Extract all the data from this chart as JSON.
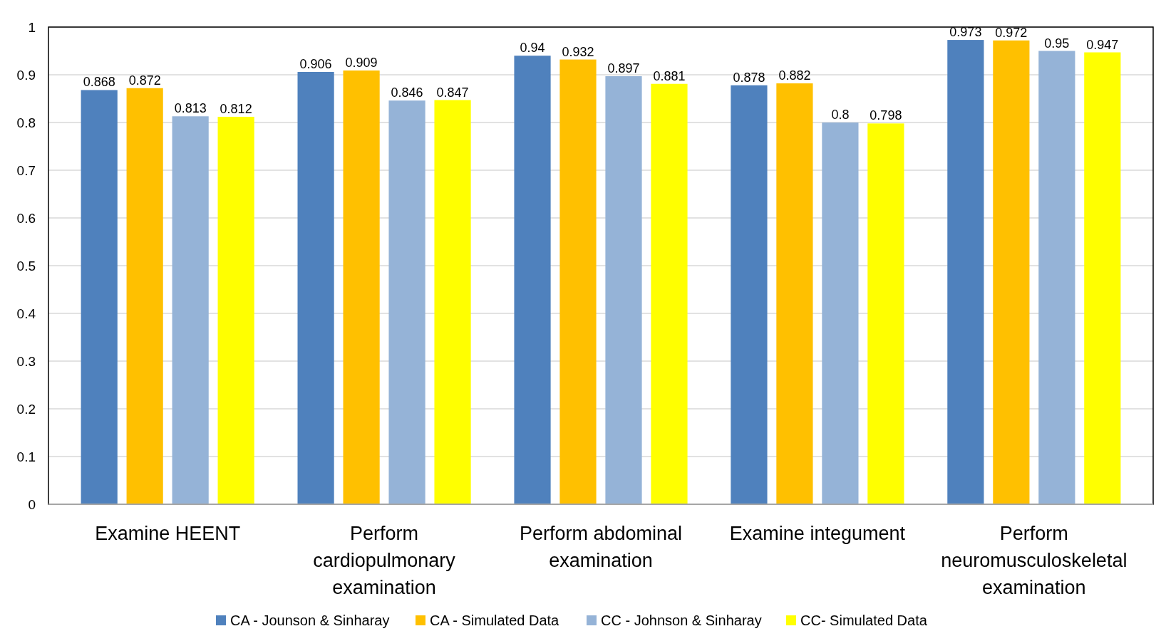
{
  "chart_data": {
    "type": "bar",
    "categories": [
      "Examine HEENT",
      "Perform cardiopulmonary examination",
      "Perform abdominal examination",
      "Examine integument",
      "Perform neuromusculoskeletal examination"
    ],
    "series": [
      {
        "name": "CA - Jounson & Sinharay",
        "color": "#4f81bd",
        "values": [
          0.868,
          0.906,
          0.94,
          0.878,
          0.973
        ]
      },
      {
        "name": "CA - Simulated Data",
        "color": "#ffc000",
        "values": [
          0.872,
          0.909,
          0.932,
          0.882,
          0.972
        ]
      },
      {
        "name": "CC - Johnson & Sinharay",
        "color": "#95b3d7",
        "values": [
          0.813,
          0.846,
          0.897,
          0.8,
          0.95
        ]
      },
      {
        "name": "CC- Simulated Data",
        "color": "#ffff00",
        "values": [
          0.812,
          0.847,
          0.881,
          0.798,
          0.947
        ]
      }
    ],
    "ylim": [
      0,
      1
    ],
    "yticks": [
      0,
      0.1,
      0.2,
      0.3,
      0.4,
      0.5,
      0.6,
      0.7,
      0.8,
      0.9,
      1
    ],
    "grid": "y",
    "legend": "bottom",
    "data_labels": true
  }
}
